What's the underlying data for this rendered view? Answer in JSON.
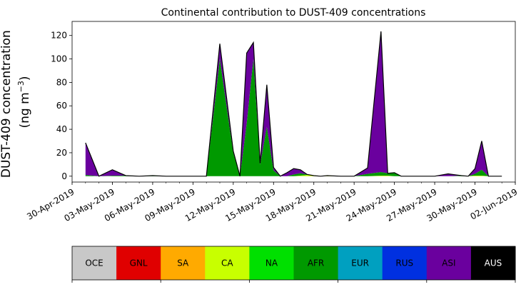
{
  "chart_data": {
    "type": "area",
    "stacked": true,
    "title": "Continental contribution to DUST-409 concentrations",
    "ylabel_line1": "DUST-409 concentration",
    "ylabel_line2": "(ng m",
    "ylabel_unit_sup": "−3",
    "ylabel_close": ")",
    "ylim": [
      -5,
      132
    ],
    "yticks": [
      0,
      20,
      40,
      60,
      80,
      100,
      120
    ],
    "ytick_labels": [
      "0",
      "20",
      "40",
      "60",
      "80",
      "100",
      "120"
    ],
    "xlim": [
      "2019-04-30",
      "2019-06-02"
    ],
    "xticks": [
      "2019-04-30",
      "2019-05-03",
      "2019-05-06",
      "2019-05-09",
      "2019-05-12",
      "2019-05-15",
      "2019-05-18",
      "2019-05-21",
      "2019-05-24",
      "2019-05-27",
      "2019-05-30",
      "2019-06-02"
    ],
    "xtick_labels": [
      "30-Apr-2019",
      "03-May-2019",
      "06-May-2019",
      "09-May-2019",
      "12-May-2019",
      "15-May-2019",
      "18-May-2019",
      "21-May-2019",
      "24-May-2019",
      "27-May-2019",
      "30-May-2019",
      "02-Jun-2019"
    ],
    "x": [
      "2019-05-01",
      "2019-05-02",
      "2019-05-03",
      "2019-05-04",
      "2019-05-05",
      "2019-05-06",
      "2019-05-07",
      "2019-05-08",
      "2019-05-09",
      "2019-05-10",
      "2019-05-11",
      "2019-05-12",
      "2019-05-12T12:00",
      "2019-05-13",
      "2019-05-13T12:00",
      "2019-05-14",
      "2019-05-14T12:00",
      "2019-05-15",
      "2019-05-15T12:00",
      "2019-05-16",
      "2019-05-16T12:00",
      "2019-05-17",
      "2019-05-17T12:00",
      "2019-05-18",
      "2019-05-18T12:00",
      "2019-05-19",
      "2019-05-20",
      "2019-05-21",
      "2019-05-22",
      "2019-05-23",
      "2019-05-23T12:00",
      "2019-05-24",
      "2019-05-24T12:00",
      "2019-05-25",
      "2019-05-25T12:00",
      "2019-05-26",
      "2019-05-27",
      "2019-05-28",
      "2019-05-29",
      "2019-05-29T12:00",
      "2019-05-30",
      "2019-05-30T12:00",
      "2019-05-31",
      "2019-05-31T12:00",
      "2019-06-01"
    ],
    "series": [
      {
        "name": "OCE",
        "color": "#c8c8c8",
        "values": [
          0,
          0,
          0,
          0,
          0,
          0,
          0,
          0,
          0,
          0,
          0,
          0,
          0,
          0,
          0,
          0,
          0,
          0,
          0,
          0,
          0,
          0,
          0,
          0,
          0,
          0,
          0,
          0,
          0,
          0,
          0,
          0,
          0,
          0,
          0,
          0,
          0,
          0,
          0,
          0,
          0,
          0,
          0,
          0,
          0
        ]
      },
      {
        "name": "GNL",
        "color": "#e00000",
        "values": [
          0,
          0,
          0,
          0,
          0,
          0,
          0,
          0,
          0,
          0,
          0,
          0,
          0,
          0,
          0,
          0,
          0,
          0,
          0,
          0,
          0,
          0,
          0,
          0,
          0,
          0,
          0,
          0,
          0,
          0,
          0,
          0,
          0,
          0,
          0,
          0,
          0,
          0,
          0,
          0,
          0,
          0,
          0,
          0,
          0
        ]
      },
      {
        "name": "SA",
        "color": "#ffaa00",
        "values": [
          0,
          0,
          0,
          0,
          0,
          0,
          0,
          0,
          0,
          0,
          0,
          0,
          0,
          0,
          0,
          0,
          0,
          0,
          0,
          0,
          0,
          0,
          0,
          0,
          0,
          0,
          0,
          0,
          0,
          0,
          0,
          0,
          0,
          0,
          0,
          0,
          0,
          0,
          0,
          0,
          0,
          0,
          0,
          0,
          0
        ]
      },
      {
        "name": "CA",
        "color": "#c8ff00",
        "values": [
          0,
          0,
          0,
          0,
          0,
          0,
          0,
          0,
          0,
          0,
          0,
          0,
          0,
          0,
          0,
          0,
          0,
          0,
          0,
          0,
          0,
          0.5,
          1,
          0.5,
          0,
          0.5,
          0,
          0,
          0,
          0.5,
          0.5,
          0,
          0,
          0,
          0,
          0,
          0,
          0,
          0,
          0,
          0.5,
          0.5,
          0,
          0,
          0
        ]
      },
      {
        "name": "NA",
        "color": "#00e000",
        "values": [
          0,
          0,
          0,
          0,
          0,
          0,
          0,
          0,
          0,
          0,
          0,
          0,
          0,
          0,
          0,
          0,
          0,
          0,
          0,
          0,
          0,
          0,
          0,
          0,
          0,
          0,
          0,
          0,
          0,
          0,
          0,
          0,
          0,
          0,
          0,
          0,
          0,
          0,
          0,
          0,
          0,
          0,
          0,
          0,
          0
        ]
      },
      {
        "name": "AFR",
        "color": "#009900",
        "values": [
          1,
          0,
          0.5,
          0.5,
          0,
          0.5,
          0,
          0,
          0,
          0,
          100,
          20,
          0,
          45,
          100,
          10,
          42,
          5,
          0,
          0,
          1.5,
          2,
          0.5,
          0,
          0,
          0,
          0,
          0,
          2,
          3,
          2,
          3,
          0,
          0,
          0,
          0,
          0,
          0,
          0.5,
          0,
          1.5,
          5,
          0,
          0,
          0
        ]
      },
      {
        "name": "EUR",
        "color": "#00a0c0",
        "values": [
          0,
          0,
          0,
          0,
          0,
          0,
          0,
          0,
          0,
          0,
          0,
          0,
          0,
          0,
          0,
          0,
          0,
          0,
          0,
          0,
          0,
          0,
          0,
          0,
          0,
          0,
          0,
          0,
          0,
          0,
          0,
          0,
          0,
          0,
          0,
          0,
          0,
          0,
          0,
          0,
          0,
          0,
          0,
          0,
          0
        ]
      },
      {
        "name": "RUS",
        "color": "#0030e0",
        "values": [
          0,
          0,
          0,
          0,
          0,
          0,
          0,
          0,
          0,
          0,
          0,
          0,
          0,
          0,
          0,
          0,
          0,
          0,
          0,
          0,
          0,
          0,
          0,
          0,
          0,
          0,
          0,
          0,
          0,
          0,
          0,
          0,
          0,
          0,
          0,
          0,
          0,
          0,
          0,
          0,
          0,
          0,
          0,
          0,
          0
        ]
      },
      {
        "name": "ASI",
        "color": "#6a009e",
        "values": [
          27.5,
          0,
          5,
          0,
          0,
          0,
          0,
          0,
          0,
          0,
          13,
          1.5,
          0,
          60,
          14,
          1,
          36,
          2.5,
          0,
          3,
          5,
          3,
          0,
          0,
          0,
          0,
          0,
          0,
          5,
          120,
          0,
          0,
          0,
          0,
          0,
          0,
          0,
          2,
          0,
          0,
          4.5,
          24.5,
          0,
          0,
          0
        ]
      },
      {
        "name": "AUS",
        "color": "#000000",
        "values": [
          0,
          0,
          0,
          0,
          0,
          0,
          0,
          0,
          0,
          0,
          0,
          0,
          0,
          0,
          0,
          0,
          0,
          0,
          0,
          0,
          0,
          0,
          0,
          0,
          0,
          0,
          0,
          0,
          0,
          0,
          0,
          0,
          0,
          0,
          0,
          0,
          0,
          0,
          0,
          0,
          0,
          0,
          0,
          0,
          0
        ]
      }
    ],
    "legend": [
      {
        "name": "OCE",
        "color": "#c8c8c8",
        "text_color": "#000000"
      },
      {
        "name": "GNL",
        "color": "#e00000",
        "text_color": "#000000"
      },
      {
        "name": "SA",
        "color": "#ffaa00",
        "text_color": "#000000"
      },
      {
        "name": "CA",
        "color": "#c8ff00",
        "text_color": "#000000"
      },
      {
        "name": "NA",
        "color": "#00e000",
        "text_color": "#000000"
      },
      {
        "name": "AFR",
        "color": "#009900",
        "text_color": "#000000"
      },
      {
        "name": "EUR",
        "color": "#00a0c0",
        "text_color": "#000000"
      },
      {
        "name": "RUS",
        "color": "#0030e0",
        "text_color": "#000000"
      },
      {
        "name": "ASI",
        "color": "#6a009e",
        "text_color": "#000000"
      },
      {
        "name": "AUS",
        "color": "#000000",
        "text_color": "#ffffff"
      }
    ],
    "legend_placement": "bottom",
    "grid": false
  }
}
